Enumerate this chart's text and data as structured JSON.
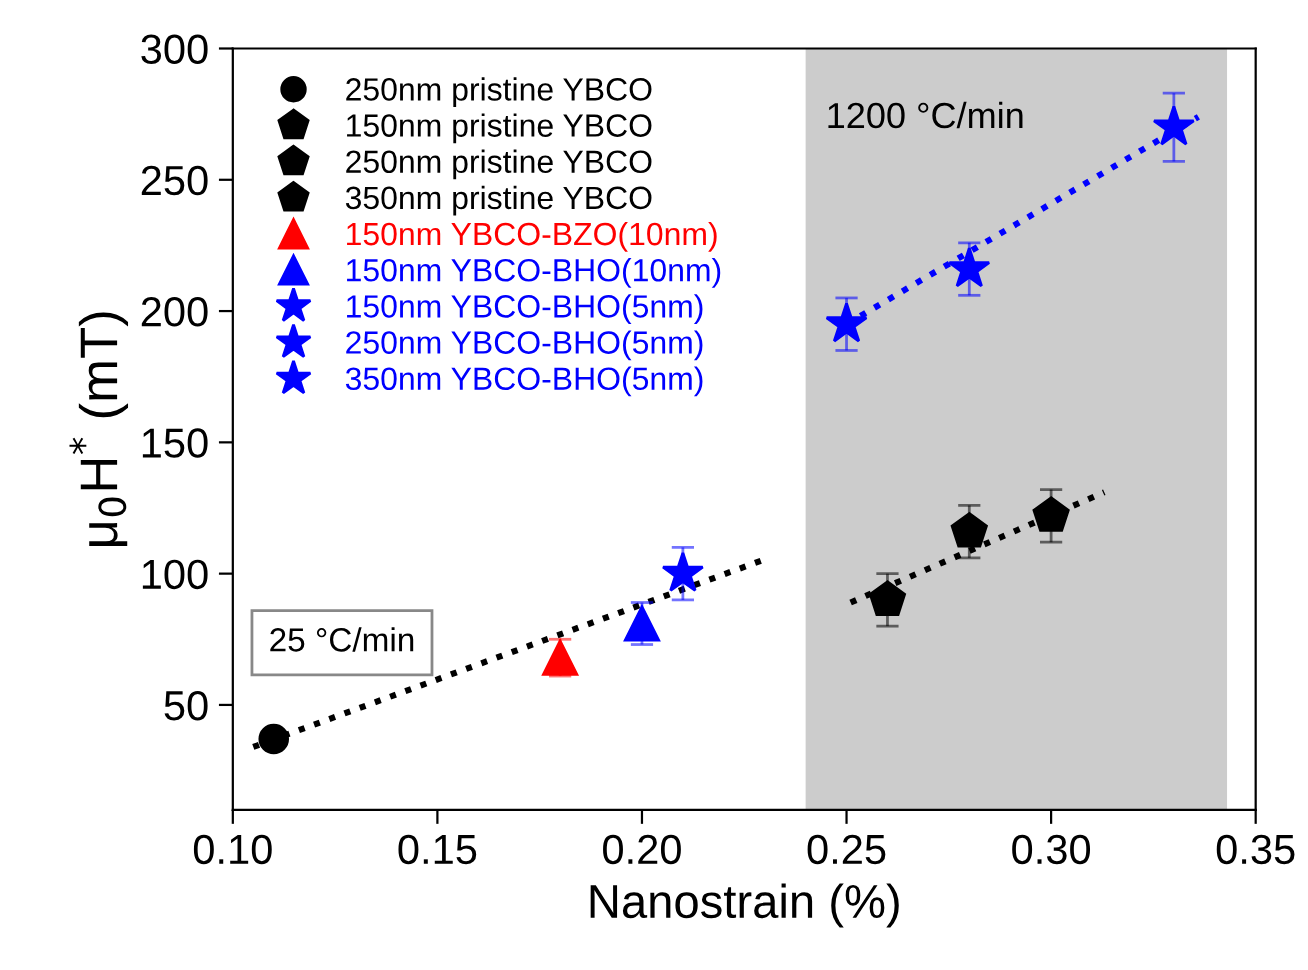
{
  "chart_data": {
    "type": "scatter",
    "xlabel": "Nanostrain (%)",
    "ylabel": "μ$_{0}$H$^{*}$ (mT)",
    "xlim": [
      0.1,
      0.35
    ],
    "xticks": [
      {
        "value": 0.1,
        "label": "0.10"
      },
      {
        "value": 0.15,
        "label": "0.15"
      },
      {
        "value": 0.2,
        "label": "0.20"
      },
      {
        "value": 0.25,
        "label": "0.25"
      },
      {
        "value": 0.3,
        "label": "0.30"
      },
      {
        "value": 0.35,
        "label": "0.35"
      }
    ],
    "ylim": [
      10,
      300
    ],
    "yticks": [
      50,
      100,
      150,
      200,
      250,
      300
    ],
    "legend": "top left",
    "bands": [
      {
        "axis": "x",
        "from": 0.24,
        "to": 0.343,
        "label": "1200 °C/min",
        "color": "#cccccc"
      }
    ],
    "annotations": [
      "25 °C/min"
    ],
    "series": [
      {
        "name": "250nm pristine YBCO",
        "color": "#000000",
        "marker": "circle",
        "x": [
          0.11
        ],
        "values": [
          37
        ]
      },
      {
        "name": "150nm pristine YBCO",
        "color": "#000000",
        "x": [
          0.26
        ],
        "values": [
          90
        ],
        "errors": [
          10
        ]
      },
      {
        "name": "250nm pristine YBCO",
        "color": "#000000",
        "x": [
          0.28
        ],
        "values": [
          116
        ],
        "errors": [
          10
        ]
      },
      {
        "name": "350nm pristine YBCO",
        "color": "#000000",
        "x": [
          0.3
        ],
        "values": [
          122
        ],
        "errors": [
          10
        ]
      },
      {
        "name": "150nm YBCO-BZO(10nm)",
        "color": "#ff0000",
        "marker": "triangle",
        "x": [
          0.18
        ],
        "values": [
          68
        ],
        "errors": [
          7
        ]
      },
      {
        "name": "150nm YBCO-BHO(10nm)",
        "color": "#0000ff",
        "marker": "triangle",
        "x": [
          0.2
        ],
        "values": [
          81
        ],
        "errors": [
          8
        ]
      },
      {
        "name": "150nm YBCO-BHO(5nm)",
        "color": "#0000ff",
        "marker": "star",
        "x": [
          0.21,
          0.25
        ],
        "values": [
          100,
          195
        ],
        "errors": [
          10,
          10
        ]
      },
      {
        "name": "250nm YBCO-BHO(5nm)",
        "color": "#0000ff",
        "marker": "star",
        "x": [
          0.28
        ],
        "values": [
          216
        ],
        "errors": [
          10
        ]
      },
      {
        "name": "350nm YBCO-BHO(5nm)",
        "color": "#0000ff",
        "marker": "star",
        "x": [
          0.33
        ],
        "values": [
          270
        ],
        "errors": [
          13
        ]
      },
      {
        "type": "line",
        "color": "#000000",
        "line_style": "dotted",
        "marker": "none",
        "x": [
          0.105,
          0.231
        ],
        "values": [
          34,
          106
        ]
      },
      {
        "type": "line",
        "color": "#000000",
        "line_style": "dotted",
        "marker": "none",
        "x": [
          0.251,
          0.313
        ],
        "values": [
          89,
          131
        ]
      },
      {
        "type": "line",
        "color": "#0000ff",
        "line_style": "dotted",
        "marker": "none",
        "x": [
          0.25,
          0.336
        ],
        "values": [
          195,
          274
        ]
      }
    ]
  }
}
